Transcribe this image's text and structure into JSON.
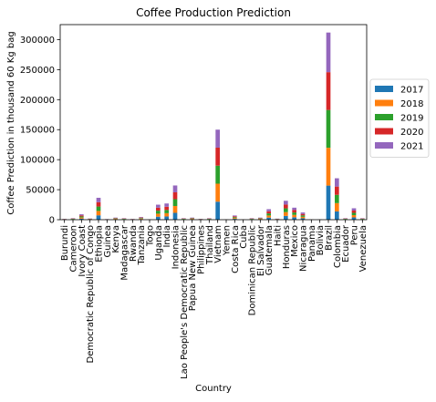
{
  "chart_data": {
    "type": "bar",
    "stacked": true,
    "title": "Coffee Production Prediction",
    "xlabel": "Country",
    "ylabel": "Coffee Prediction in thousand 60 Kg bag",
    "ylim": [
      0,
      325000
    ],
    "yticks": [
      0,
      50000,
      100000,
      150000,
      200000,
      250000,
      300000
    ],
    "grid": false,
    "legend_position": "right",
    "categories": [
      "Burundi",
      "Cameroon",
      "Ivory Coast",
      "Democratic Republic of Congo",
      "Ethiopia",
      "Guinea",
      "Kenya",
      "Madagascar",
      "Rwanda",
      "Tanzania",
      "Togo",
      "Uganda",
      "India",
      "Indonesia",
      "Lao People's Democratic Republic",
      "Papua New Guinea",
      "Philippines",
      "Thailand",
      "Vietnam",
      "Yemen",
      "Costa Rica",
      "Cuba",
      "Dominican Republic",
      "El Salvador",
      "Guatemala",
      "Haiti",
      "Honduras",
      "Mexico",
      "Nicaragua",
      "Panama",
      "Bolivia",
      "Brazil",
      "Colombia",
      "Ecuador",
      "Peru",
      "Venezuela"
    ],
    "series": [
      {
        "name": "2017",
        "color": "#1f77b4",
        "values": [
          300,
          500,
          1800,
          400,
          7300,
          200,
          700,
          500,
          250,
          900,
          100,
          5000,
          5400,
          11400,
          500,
          700,
          300,
          500,
          30000,
          100,
          1400,
          100,
          500,
          700,
          3500,
          350,
          6300,
          4000,
          2400,
          100,
          100,
          56800,
          13800,
          500,
          3800,
          500
        ]
      },
      {
        "name": "2018",
        "color": "#ff7f0e",
        "values": [
          300,
          500,
          1800,
          400,
          7300,
          200,
          700,
          500,
          250,
          900,
          100,
          5000,
          5400,
          11400,
          500,
          700,
          300,
          500,
          30000,
          100,
          1400,
          100,
          500,
          700,
          3500,
          350,
          6300,
          4000,
          2400,
          100,
          100,
          63000,
          13800,
          500,
          3800,
          500
        ]
      },
      {
        "name": "2019",
        "color": "#2ca02c",
        "values": [
          300,
          500,
          1800,
          400,
          7300,
          200,
          700,
          500,
          250,
          900,
          100,
          5000,
          5400,
          11400,
          500,
          700,
          300,
          500,
          30000,
          100,
          1400,
          100,
          500,
          700,
          3500,
          350,
          6300,
          4000,
          2400,
          100,
          100,
          63000,
          13800,
          500,
          3800,
          500
        ]
      },
      {
        "name": "2020",
        "color": "#d62728",
        "values": [
          300,
          500,
          1800,
          400,
          7300,
          200,
          700,
          500,
          250,
          900,
          100,
          5000,
          5400,
          11400,
          500,
          700,
          300,
          500,
          30000,
          100,
          1400,
          100,
          500,
          700,
          3500,
          350,
          6300,
          4000,
          2400,
          100,
          100,
          63000,
          13800,
          500,
          3800,
          500
        ]
      },
      {
        "name": " 2021",
        "color": "#9467bd",
        "values": [
          300,
          500,
          1800,
          400,
          7300,
          200,
          700,
          500,
          250,
          900,
          100,
          5000,
          5400,
          11400,
          500,
          700,
          300,
          500,
          30000,
          100,
          1400,
          100,
          500,
          700,
          3500,
          350,
          6300,
          4000,
          2400,
          100,
          100,
          66000,
          13800,
          500,
          3800,
          500
        ]
      }
    ]
  }
}
